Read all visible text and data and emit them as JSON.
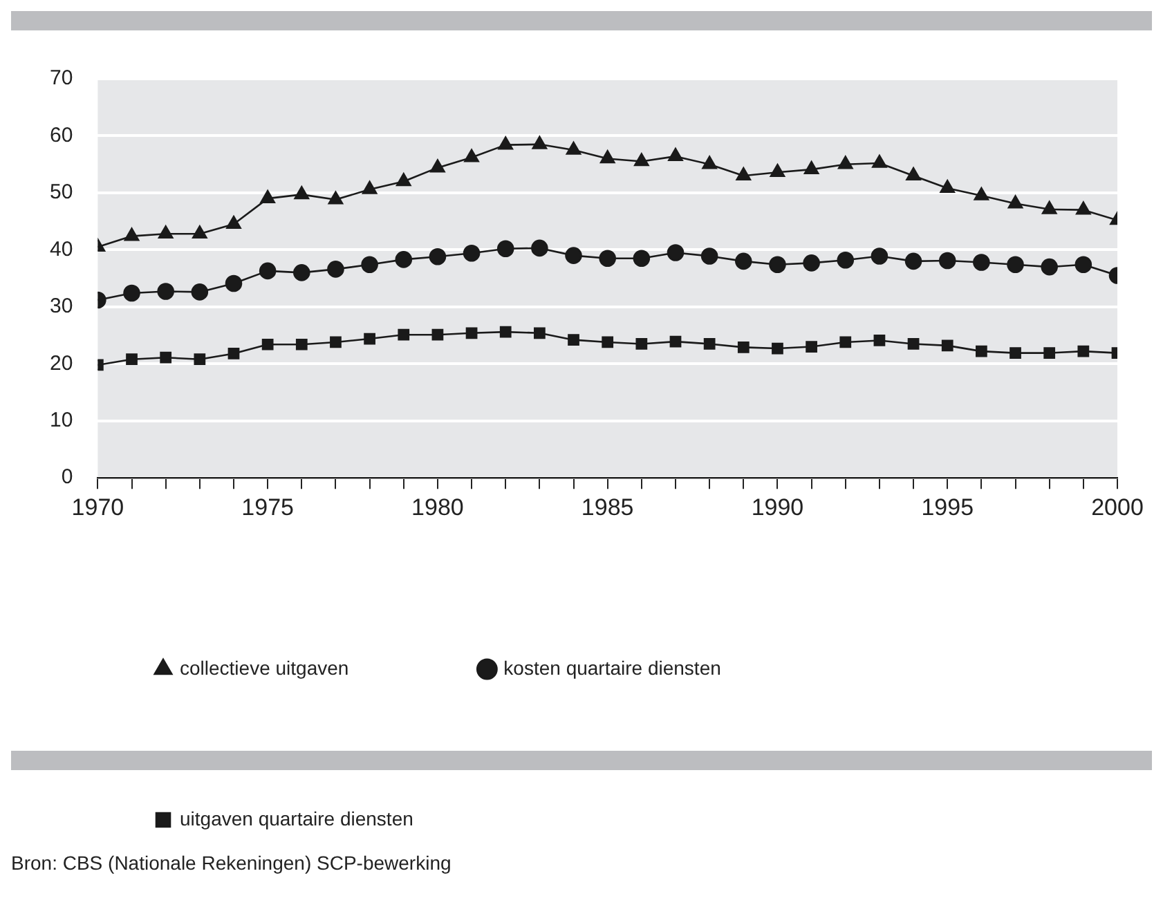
{
  "chart_data": {
    "type": "line",
    "x": [
      1970,
      1971,
      1972,
      1973,
      1974,
      1975,
      1976,
      1977,
      1978,
      1979,
      1980,
      1981,
      1982,
      1983,
      1984,
      1985,
      1986,
      1987,
      1988,
      1989,
      1990,
      1991,
      1992,
      1993,
      1994,
      1995,
      1996,
      1997,
      1998,
      1999,
      2000
    ],
    "series": [
      {
        "name": "collectieve uitgaven",
        "color": "#1a1a1a",
        "marker": "triangle",
        "values": [
          40.5,
          42.4,
          42.8,
          42.8,
          44.5,
          49,
          49.7,
          48.8,
          50.6,
          52,
          54.4,
          56.2,
          58.4,
          58.5,
          57.5,
          56,
          55.5,
          56.4,
          55,
          53,
          53.6,
          54.1,
          55,
          55.2,
          53,
          50.8,
          49.5,
          48.1,
          47.1,
          47,
          45.2
        ]
      },
      {
        "name": "kosten quartaire diensten",
        "color": "#1a1a1a",
        "marker": "circle",
        "values": [
          31.2,
          32.4,
          32.7,
          32.6,
          34.1,
          36.3,
          36,
          36.6,
          37.4,
          38.3,
          38.8,
          39.4,
          40.2,
          40.3,
          39,
          38.5,
          38.5,
          39.5,
          38.9,
          38,
          37.4,
          37.7,
          38.2,
          38.9,
          38,
          38.1,
          37.8,
          37.4,
          37,
          37.4,
          35.5
        ]
      },
      {
        "name": "uitgaven quartaire diensten",
        "color": "#1a1a1a",
        "marker": "square",
        "values": [
          19.8,
          20.8,
          21.1,
          20.8,
          21.8,
          23.4,
          23.4,
          23.8,
          24.4,
          25.1,
          25.1,
          25.4,
          25.6,
          25.4,
          24.2,
          23.8,
          23.5,
          23.9,
          23.5,
          22.9,
          22.7,
          23,
          23.8,
          24.1,
          23.5,
          23.2,
          22.2,
          21.9,
          21.9,
          22.2,
          21.9
        ]
      }
    ],
    "xlim": [
      1970,
      2000
    ],
    "xticks": [
      1970,
      {
        "value": 1971,
        "label": null
      },
      {
        "value": 1972,
        "label": null
      },
      {
        "value": 1973,
        "label": null
      },
      {
        "value": 1974,
        "label": null
      },
      1975,
      {
        "value": 1976,
        "label": null
      },
      {
        "value": 1977,
        "label": null
      },
      {
        "value": 1978,
        "label": null
      },
      {
        "value": 1979,
        "label": null
      },
      1980,
      {
        "value": 1981,
        "label": null
      },
      {
        "value": 1982,
        "label": null
      },
      {
        "value": 1983,
        "label": null
      },
      {
        "value": 1984,
        "label": null
      },
      1985,
      {
        "value": 1986,
        "label": null
      },
      {
        "value": 1987,
        "label": null
      },
      {
        "value": 1988,
        "label": null
      },
      {
        "value": 1989,
        "label": null
      },
      1990,
      {
        "value": 1991,
        "label": null
      },
      {
        "value": 1992,
        "label": null
      },
      {
        "value": 1993,
        "label": null
      },
      {
        "value": 1994,
        "label": null
      },
      1995,
      {
        "value": 1996,
        "label": null
      },
      {
        "value": 1997,
        "label": null
      },
      {
        "value": 1998,
        "label": null
      },
      {
        "value": 1999,
        "label": null
      },
      2000
    ],
    "ylim": [
      0,
      70
    ],
    "yticks": [
      0,
      10,
      20,
      30,
      40,
      50,
      60,
      70
    ],
    "grid": "y",
    "legend": "bottom left",
    "line_style": "solid",
    "annotations": [
      "Bron: CBS (Nationale Rekeningen) SCP-bewerking"
    ]
  }
}
